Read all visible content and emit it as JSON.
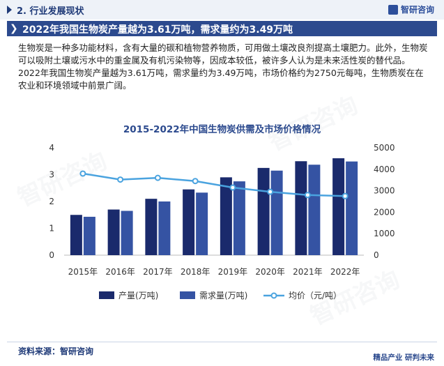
{
  "header": {
    "section_title": "2. 行业发展现状",
    "logo_text": "智研咨询",
    "banner_title": "2022年我国生物炭产量越为3.61万吨，需求量约为3.49万吨"
  },
  "paragraph": "生物炭是一种多功能材料，含有大量的碳和植物营养物质，可用做土壤改良剂提高土壤肥力。此外，生物炭可以吸附土壤或污水中的重金属及有机污染物等，因成本较低，被许多人认为是未来活性炭的替代品。2022年我国生物炭产量越为3.61万吨，需求量约为3.49万吨，市场价格约为2750元每吨，生物质炭在在农业和环境领域中前景广阔。",
  "footer": {
    "source": "资料来源：智研咨询",
    "brand": "精品产业 研判未来"
  },
  "colors": {
    "production": "#1a2a6c",
    "demand": "#3553a3",
    "price": "#4aa3df"
  },
  "chart_data": {
    "type": "bar",
    "title": "2015-2022年中国生物炭供需及市场价格情况",
    "categories": [
      "2015年",
      "2016年",
      "2017年",
      "2018年",
      "2019年",
      "2020年",
      "2021年",
      "2022年"
    ],
    "series": [
      {
        "name": "产量(万吨)",
        "type": "bar",
        "axis": "left",
        "values": [
          1.5,
          1.7,
          2.1,
          2.45,
          2.9,
          3.25,
          3.5,
          3.61
        ]
      },
      {
        "name": "需求量(万吨)",
        "type": "bar",
        "axis": "left",
        "values": [
          1.43,
          1.65,
          2.0,
          2.33,
          2.75,
          3.15,
          3.37,
          3.49
        ]
      },
      {
        "name": "均价（元/吨）",
        "type": "line",
        "axis": "right",
        "values": [
          3800,
          3520,
          3600,
          3450,
          3150,
          2950,
          2800,
          2750
        ]
      }
    ],
    "y_left": {
      "min": 0,
      "max": 4,
      "ticks": [
        "0",
        "1",
        "2",
        "3",
        "4"
      ]
    },
    "y_right": {
      "min": 0,
      "max": 5000,
      "ticks": [
        "0",
        "1000",
        "2000",
        "3000",
        "4000",
        "5000"
      ]
    },
    "legend_position": "bottom"
  }
}
